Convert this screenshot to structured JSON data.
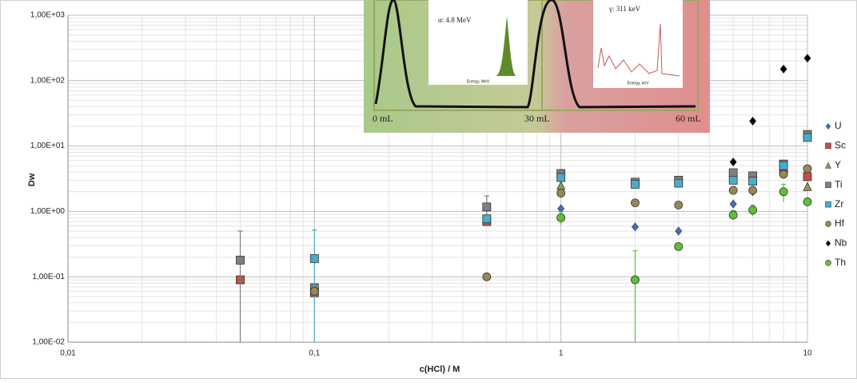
{
  "chart_data": {
    "type": "scatter",
    "log_x": true,
    "log_y": true,
    "grid": true,
    "legend": "right",
    "xlabel": "c(HCl) / M",
    "ylabel": "Dw",
    "xlim": [
      0.01,
      10
    ],
    "ylim": [
      0.01,
      1000
    ],
    "xticks": [
      {
        "value": 0.01,
        "label": "0,01"
      },
      {
        "value": 0.1,
        "label": "0,1"
      },
      1,
      10
    ],
    "yticks": [
      {
        "value": 0.01,
        "label": "1,00E-02"
      },
      {
        "value": 0.1,
        "label": "1,00E-01"
      },
      {
        "value": 1,
        "label": "1,00E+00"
      },
      {
        "value": 10,
        "label": "1,00E+01"
      },
      {
        "value": 100,
        "label": "1,00E+02"
      },
      {
        "value": 1000,
        "label": "1,00E+03"
      }
    ],
    "x": [
      0.05,
      0.1,
      0.5,
      1,
      2,
      3,
      5,
      6,
      8,
      10
    ],
    "series": [
      {
        "name": "U",
        "color": "#4a6fa5",
        "marker": "diamond",
        "values": [
          null,
          null,
          null,
          1.1,
          0.58,
          0.5,
          1.3,
          2.0,
          null,
          null
        ]
      },
      {
        "name": "Sc",
        "color": "#c0504d",
        "marker": "square",
        "values": [
          0.09,
          0.057,
          0.7,
          null,
          null,
          null,
          null,
          null,
          4.4,
          3.4
        ]
      },
      {
        "name": "Y",
        "color": "#8e9a52",
        "marker": "triangle",
        "values": [
          null,
          null,
          null,
          2.5,
          null,
          null,
          null,
          null,
          null,
          2.4
        ]
      },
      {
        "name": "Ti",
        "color": "#7f7f7f",
        "marker": "square",
        "values": [
          0.18,
          0.068,
          1.17,
          3.8,
          2.8,
          3.0,
          3.9,
          3.5,
          5.3,
          15
        ],
        "errors": [
          0.32,
          null,
          0.55,
          null,
          null,
          null,
          null,
          null,
          null,
          null
        ]
      },
      {
        "name": "Zr",
        "color": "#4bacc6",
        "marker": "square",
        "values": [
          null,
          0.19,
          0.77,
          3.3,
          2.6,
          2.7,
          3.0,
          2.9,
          5.0,
          13.5
        ],
        "errors": [
          null,
          0.33,
          null,
          null,
          null,
          null,
          null,
          null,
          null,
          null
        ]
      },
      {
        "name": "Hf",
        "color": "#948a54",
        "marker": "circle",
        "values": [
          null,
          0.06,
          0.1,
          1.9,
          1.35,
          1.25,
          2.1,
          2.1,
          3.7,
          4.5
        ]
      },
      {
        "name": "Nb",
        "color": "#000000",
        "marker": "diamond",
        "values": [
          null,
          null,
          null,
          null,
          null,
          null,
          5.7,
          24,
          150,
          220
        ]
      },
      {
        "name": "Th",
        "color": "#5fbf3a",
        "marker": "circle",
        "values": [
          null,
          null,
          null,
          0.8,
          0.09,
          0.29,
          0.88,
          1.05,
          2.0,
          1.4
        ],
        "errors": [
          null,
          null,
          null,
          0.18,
          0.16,
          null,
          0.15,
          0.2,
          0.6,
          null
        ]
      }
    ]
  },
  "inset": {
    "alpha": "α: 4.8 MeV",
    "gamma": "γ: 311 keV",
    "mev": "Energy, MeV",
    "kev": "Energy, keV",
    "v0": "0 mL",
    "v30": "30 mL",
    "v60": "60 mL"
  }
}
